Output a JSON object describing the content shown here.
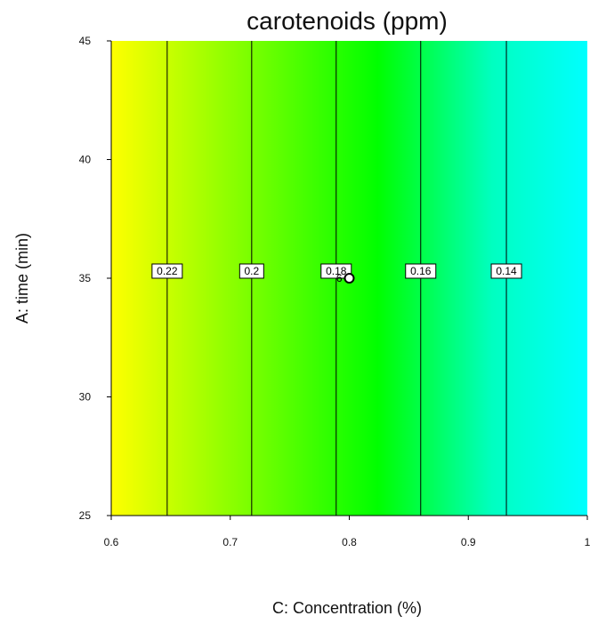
{
  "chart_data": {
    "type": "contour",
    "title": "carotenoids (ppm)",
    "xlabel": "C: Concentration (%)",
    "ylabel": "A: time (min)",
    "xlim": [
      0.6,
      1.0
    ],
    "ylim": [
      25,
      45
    ],
    "x_ticks": [
      "0.6",
      "0.7",
      "0.8",
      "0.9",
      "1"
    ],
    "y_ticks": [
      "25",
      "30",
      "35",
      "40",
      "45"
    ],
    "colormap": [
      "#ffff00",
      "#7fff00",
      "#00ff00",
      "#00ffc0",
      "#00ffff"
    ],
    "contours": [
      {
        "level": "0.22",
        "x": 0.647,
        "label_y": 35.3
      },
      {
        "level": "0.2",
        "x": 0.718,
        "label_y": 35.3
      },
      {
        "level": "0.18",
        "x": 0.789,
        "label_y": 35.3
      },
      {
        "level": "0.16",
        "x": 0.86,
        "label_y": 35.3
      },
      {
        "level": "0.14",
        "x": 0.932,
        "label_y": 35.3
      }
    ],
    "design_point": {
      "x": 0.8,
      "y": 35,
      "label": "6"
    }
  }
}
